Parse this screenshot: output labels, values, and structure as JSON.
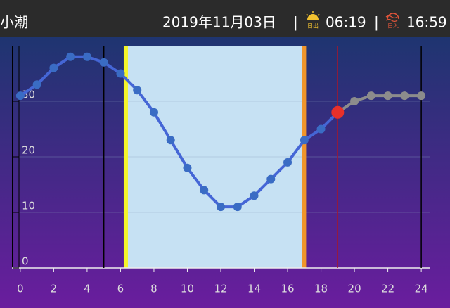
{
  "header": {
    "tide": "小潮",
    "date": "2019年11月03日",
    "separator": "|",
    "sunrise_label": "日出",
    "sunrise": "06:19",
    "sunset_label": "日入",
    "sunset": "16:59"
  },
  "chart_data": {
    "type": "line",
    "x": [
      0,
      1,
      2,
      3,
      4,
      5,
      6,
      7,
      8,
      9,
      10,
      11,
      12,
      13,
      14,
      15,
      16,
      17,
      18,
      19,
      20,
      21,
      22,
      23,
      24
    ],
    "values": [
      31,
      33,
      36,
      38,
      38,
      37,
      35,
      32,
      28,
      23,
      18,
      14,
      11,
      11,
      13,
      16,
      19,
      23,
      25,
      28,
      30,
      31,
      31,
      31,
      31
    ],
    "current_x": 19,
    "reference_lines": [
      5,
      24
    ],
    "color": "#4566d6",
    "point_color": "#3a6cc4",
    "future_color": "#8c8c8c",
    "current_color": "#e8302a",
    "daylight_color": "#c6e1f3",
    "xlim": [
      -0.5,
      24.5
    ],
    "xticks": [
      0,
      2,
      4,
      6,
      8,
      10,
      12,
      14,
      16,
      18,
      20,
      22,
      24
    ],
    "ylim": [
      0,
      40
    ],
    "yticks": [
      0,
      10,
      20,
      30
    ],
    "grid": true
  }
}
